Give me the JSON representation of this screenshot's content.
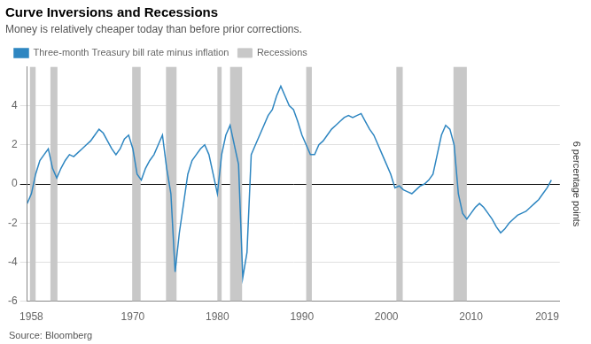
{
  "chart_data": {
    "type": "line",
    "title": "Curve Inversions and Recessions",
    "subtitle": "Money is relatively cheaper today than before prior corrections.",
    "ylabel": "6 percentage points",
    "source": "Source: Bloomberg",
    "legend": "upper left",
    "grid": "y",
    "xlim": [
      1957.5,
      2020.5
    ],
    "xticks": [
      1958,
      1970,
      1980,
      1990,
      2000,
      2010,
      2019
    ],
    "ylim": [
      -6,
      6
    ],
    "yticks": [
      -6,
      -4,
      -2,
      0,
      2,
      4
    ],
    "x": [
      1957.5,
      1958.0,
      1958.5,
      1959.0,
      1959.5,
      1960.0,
      1960.5,
      1961.0,
      1961.5,
      1962.0,
      1962.5,
      1963.0,
      1963.5,
      1964.0,
      1964.5,
      1965.0,
      1965.5,
      1966.0,
      1966.5,
      1967.0,
      1967.5,
      1968.0,
      1968.5,
      1969.0,
      1969.5,
      1970.0,
      1970.5,
      1971.0,
      1971.5,
      1972.0,
      1972.5,
      1973.0,
      1973.5,
      1974.0,
      1974.5,
      1975.0,
      1975.5,
      1976.0,
      1976.5,
      1977.0,
      1977.5,
      1978.0,
      1978.5,
      1979.0,
      1979.5,
      1980.0,
      1980.5,
      1981.0,
      1981.5,
      1982.0,
      1982.5,
      1983.0,
      1983.5,
      1984.0,
      1984.5,
      1985.0,
      1985.5,
      1986.0,
      1986.5,
      1987.0,
      1987.5,
      1988.0,
      1988.5,
      1989.0,
      1989.5,
      1990.0,
      1990.5,
      1991.0,
      1991.5,
      1992.0,
      1992.5,
      1993.0,
      1993.5,
      1994.0,
      1994.5,
      1995.0,
      1995.5,
      1996.0,
      1996.5,
      1997.0,
      1997.5,
      1998.0,
      1998.5,
      1999.0,
      1999.5,
      2000.0,
      2000.5,
      2001.0,
      2001.5,
      2002.0,
      2002.5,
      2003.0,
      2003.5,
      2004.0,
      2004.5,
      2005.0,
      2005.5,
      2006.0,
      2006.5,
      2007.0,
      2007.5,
      2008.0,
      2008.5,
      2009.0,
      2009.5,
      2010.0,
      2010.5,
      2011.0,
      2011.5,
      2012.0,
      2012.5,
      2013.0,
      2013.5,
      2014.0,
      2014.5,
      2015.0,
      2015.5,
      2016.0,
      2016.5,
      2017.0,
      2017.5,
      2018.0,
      2018.5,
      2019.0,
      2019.5
    ],
    "series": [
      {
        "name": "Three-month Treasury bill rate minus inflation",
        "color": "#2E86C1",
        "values": [
          -1.0,
          -0.5,
          0.5,
          1.2,
          1.5,
          1.8,
          0.8,
          0.3,
          0.8,
          1.2,
          1.5,
          1.4,
          1.6,
          1.8,
          2.0,
          2.2,
          2.5,
          2.8,
          2.6,
          2.2,
          1.8,
          1.5,
          1.8,
          2.3,
          2.5,
          1.8,
          0.5,
          0.2,
          0.8,
          1.2,
          1.5,
          2.0,
          2.5,
          0.8,
          -0.5,
          -4.5,
          -2.5,
          -1.0,
          0.5,
          1.2,
          1.5,
          1.8,
          2.0,
          1.5,
          0.5,
          -0.5,
          1.5,
          2.5,
          3.0,
          2.0,
          1.0,
          -4.8,
          -3.5,
          1.5,
          2.0,
          2.5,
          3.0,
          3.5,
          3.8,
          4.5,
          5.0,
          4.5,
          4.0,
          3.8,
          3.2,
          2.5,
          2.0,
          1.5,
          1.5,
          2.0,
          2.2,
          2.5,
          2.8,
          3.0,
          3.2,
          3.4,
          3.5,
          3.4,
          3.5,
          3.6,
          3.2,
          2.8,
          2.5,
          2.0,
          1.5,
          1.0,
          0.5,
          -0.2,
          -0.1,
          -0.3,
          -0.4,
          -0.5,
          -0.3,
          -0.1,
          0.0,
          0.2,
          0.5,
          1.5,
          2.5,
          3.0,
          2.8,
          2.0,
          -0.5,
          -1.5,
          -1.8,
          -1.5,
          -1.2,
          -1.0,
          -1.2,
          -1.5,
          -1.8,
          -2.2,
          -2.5,
          -2.3,
          -2.0,
          -1.8,
          -1.6,
          -1.5,
          -1.4,
          -1.2,
          -1.0,
          -0.8,
          -0.5,
          -0.2,
          0.2
        ]
      }
    ],
    "shaded_ranges": {
      "name": "Recessions",
      "color": "#C8C8C8",
      "ranges": [
        [
          1957.83,
          1958.5
        ],
        [
          1960.25,
          1961.08
        ],
        [
          1969.92,
          1970.92
        ],
        [
          1973.92,
          1975.17
        ],
        [
          1980.0,
          1980.5
        ],
        [
          1981.5,
          1982.92
        ],
        [
          1990.5,
          1991.17
        ],
        [
          2001.17,
          2001.92
        ],
        [
          2007.92,
          2009.5
        ]
      ]
    }
  }
}
